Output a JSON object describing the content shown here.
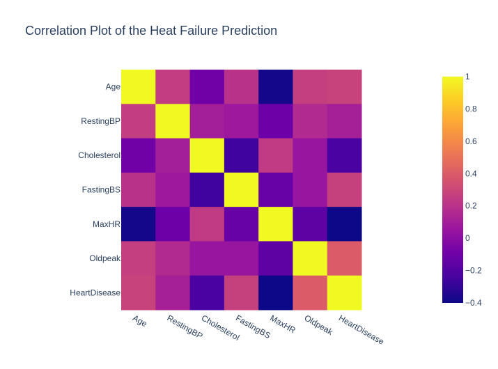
{
  "chart_data": {
    "type": "heatmap",
    "title": "Correlation Plot of the Heat Failure Prediction",
    "categories": [
      "Age",
      "RestingBP",
      "Cholesterol",
      "FastingBS",
      "MaxHR",
      "Oldpeak",
      "HeartDisease"
    ],
    "values": [
      [
        1.0,
        0.25,
        -0.1,
        0.2,
        -0.38,
        0.26,
        0.28
      ],
      [
        0.25,
        1.0,
        0.1,
        0.07,
        -0.11,
        0.16,
        0.11
      ],
      [
        -0.1,
        0.1,
        1.0,
        -0.26,
        0.24,
        0.05,
        -0.23
      ],
      [
        0.2,
        0.07,
        -0.26,
        1.0,
        -0.13,
        0.05,
        0.27
      ],
      [
        -0.38,
        -0.11,
        0.24,
        -0.13,
        1.0,
        -0.16,
        -0.4
      ],
      [
        0.26,
        0.16,
        0.05,
        0.05,
        -0.16,
        1.0,
        0.4
      ],
      [
        0.28,
        0.11,
        -0.23,
        0.27,
        -0.4,
        0.4,
        1.0
      ]
    ],
    "zlim": [
      -0.4,
      1
    ],
    "colorscale": [
      "#0d0887",
      "#46039f",
      "#7201a8",
      "#9c179e",
      "#bd3786",
      "#d8576b",
      "#ed7953",
      "#fb9f3a",
      "#fdca26",
      "#f0f921"
    ],
    "colorbar": {
      "ticks": [
        1,
        0.8,
        0.6,
        0.4,
        0.2,
        0,
        -0.2,
        -0.4
      ],
      "tick_labels": [
        "1",
        "0.8",
        "0.6",
        "0.4",
        "0.2",
        "0",
        "−0.2",
        "−0.4"
      ]
    },
    "text_color": "#2a3f5f"
  }
}
